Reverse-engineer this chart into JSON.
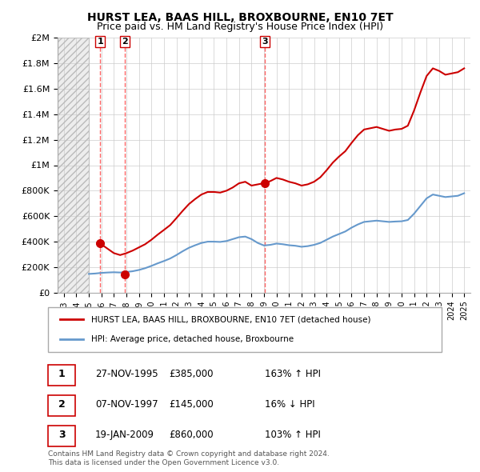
{
  "title": "HURST LEA, BAAS HILL, BROXBOURNE, EN10 7ET",
  "subtitle": "Price paid vs. HM Land Registry's House Price Index (HPI)",
  "legend_line1": "HURST LEA, BAAS HILL, BROXBOURNE, EN10 7ET (detached house)",
  "legend_line2": "HPI: Average price, detached house, Broxbourne",
  "footer": "Contains HM Land Registry data © Crown copyright and database right 2024.\nThis data is licensed under the Open Government Licence v3.0.",
  "sales": [
    {
      "date": 1995.91,
      "price": 385000,
      "label": "1",
      "note": "27-NOV-1995",
      "amount": "£385,000",
      "hpi_note": "163% ↑ HPI"
    },
    {
      "date": 1997.85,
      "price": 145000,
      "label": "2",
      "note": "07-NOV-1997",
      "amount": "£145,000",
      "hpi_note": "16% ↓ HPI"
    },
    {
      "date": 2009.05,
      "price": 860000,
      "label": "3",
      "note": "19-JAN-2009",
      "amount": "£860,000",
      "hpi_note": "103% ↑ HPI"
    }
  ],
  "hpi_x": [
    1995,
    1995.5,
    1996,
    1996.5,
    1997,
    1997.5,
    1998,
    1998.5,
    1999,
    1999.5,
    2000,
    2000.5,
    2001,
    2001.5,
    2002,
    2002.5,
    2003,
    2003.5,
    2004,
    2004.5,
    2005,
    2005.5,
    2006,
    2006.5,
    2007,
    2007.5,
    2008,
    2008.5,
    2009,
    2009.5,
    2010,
    2010.5,
    2011,
    2011.5,
    2012,
    2012.5,
    2013,
    2013.5,
    2014,
    2014.5,
    2015,
    2015.5,
    2016,
    2016.5,
    2017,
    2017.5,
    2018,
    2018.5,
    2019,
    2019.5,
    2020,
    2020.5,
    2021,
    2021.5,
    2022,
    2022.5,
    2023,
    2023.5,
    2024,
    2024.5,
    2025
  ],
  "hpi_y": [
    147000,
    150000,
    155000,
    158000,
    160000,
    158000,
    162000,
    168000,
    178000,
    192000,
    210000,
    230000,
    248000,
    268000,
    295000,
    325000,
    352000,
    372000,
    390000,
    400000,
    400000,
    398000,
    405000,
    420000,
    435000,
    440000,
    420000,
    390000,
    370000,
    375000,
    385000,
    380000,
    372000,
    368000,
    360000,
    365000,
    375000,
    390000,
    415000,
    440000,
    460000,
    480000,
    510000,
    535000,
    555000,
    560000,
    565000,
    560000,
    555000,
    558000,
    560000,
    570000,
    620000,
    680000,
    740000,
    770000,
    760000,
    750000,
    755000,
    760000,
    780000
  ],
  "red_x": [
    1995.91,
    1997.0,
    1997.5,
    1998.0,
    1998.5,
    1999.0,
    1999.5,
    2000.0,
    2000.5,
    2001.0,
    2001.5,
    2002.0,
    2002.5,
    2003.0,
    2003.5,
    2004.0,
    2004.5,
    2005.0,
    2005.5,
    2006.0,
    2006.5,
    2007.0,
    2007.5,
    2008.0,
    2009.05,
    2009.5,
    2010.0,
    2010.5,
    2011.0,
    2011.5,
    2012.0,
    2012.5,
    2013.0,
    2013.5,
    2014.0,
    2014.5,
    2015.0,
    2015.5,
    2016.0,
    2016.5,
    2017.0,
    2017.5,
    2018.0,
    2018.5,
    2019.0,
    2019.5,
    2020.0,
    2020.5,
    2021.0,
    2021.5,
    2022.0,
    2022.5,
    2023.0,
    2023.5,
    2024.0,
    2024.5,
    2025.0
  ],
  "red_y": [
    385000,
    310000,
    295000,
    310000,
    330000,
    355000,
    380000,
    415000,
    455000,
    492000,
    530000,
    585000,
    642000,
    695000,
    735000,
    770000,
    790000,
    790000,
    785000,
    800000,
    825000,
    858000,
    870000,
    840000,
    860000,
    875000,
    900000,
    888000,
    870000,
    858000,
    840000,
    850000,
    870000,
    905000,
    960000,
    1020000,
    1068000,
    1110000,
    1175000,
    1235000,
    1280000,
    1290000,
    1300000,
    1285000,
    1270000,
    1280000,
    1285000,
    1310000,
    1430000,
    1570000,
    1700000,
    1760000,
    1740000,
    1710000,
    1720000,
    1730000,
    1760000
  ],
  "xmin": 1992.5,
  "xmax": 2025.5,
  "ymin": 0,
  "ymax": 2000000,
  "hatch_end": 1995.0,
  "bg_color": "#ffffff",
  "plot_bg": "#ffffff",
  "grid_color": "#cccccc",
  "red_color": "#cc0000",
  "blue_color": "#6699cc",
  "hatch_color": "#dddddd",
  "sale_marker_color": "#cc0000",
  "dashed_line_color": "#ff6666",
  "table_border_color": "#cc0000",
  "yticks": [
    0,
    200000,
    400000,
    600000,
    800000,
    1000000,
    1200000,
    1400000,
    1600000,
    1800000,
    2000000
  ],
  "ytick_labels": [
    "£0",
    "£200K",
    "£400K",
    "£600K",
    "£800K",
    "£1M",
    "£1.2M",
    "£1.4M",
    "£1.6M",
    "£1.8M",
    "£2M"
  ],
  "xticks": [
    1993,
    1994,
    1995,
    1996,
    1997,
    1998,
    1999,
    2000,
    2001,
    2002,
    2003,
    2004,
    2005,
    2006,
    2007,
    2008,
    2009,
    2010,
    2011,
    2012,
    2013,
    2014,
    2015,
    2016,
    2017,
    2018,
    2019,
    2020,
    2021,
    2022,
    2023,
    2024,
    2025
  ]
}
